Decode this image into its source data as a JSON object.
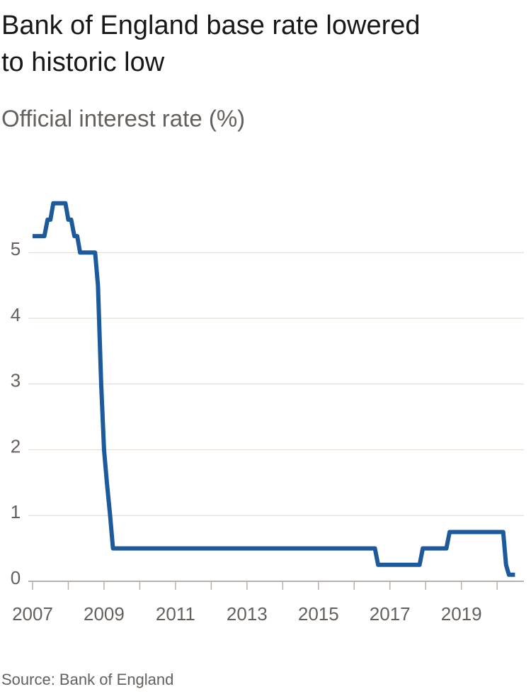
{
  "chart_data": {
    "type": "line",
    "title": [
      "Bank of England base rate lowered",
      "to historic low"
    ],
    "subtitle": "Official interest rate (%)",
    "source": "Source: Bank of England",
    "x": [
      2007.0,
      2007.33,
      2007.42,
      2007.5,
      2007.58,
      2007.92,
      2008.0,
      2008.08,
      2008.17,
      2008.25,
      2008.33,
      2008.75,
      2008.83,
      2008.92,
      2009.0,
      2009.08,
      2009.17,
      2009.25,
      2016.58,
      2016.67,
      2017.83,
      2017.92,
      2018.58,
      2018.67,
      2020.17,
      2020.25,
      2020.33,
      2020.5
    ],
    "series": [
      {
        "name": "Official interest rate",
        "color": "#1d5a9c",
        "values": [
          5.25,
          5.25,
          5.5,
          5.5,
          5.75,
          5.75,
          5.5,
          5.5,
          5.25,
          5.25,
          5.0,
          5.0,
          4.5,
          3.0,
          2.0,
          1.5,
          1.0,
          0.5,
          0.5,
          0.25,
          0.25,
          0.5,
          0.5,
          0.75,
          0.75,
          0.25,
          0.1,
          0.1
        ]
      }
    ],
    "xlim": [
      2007,
      2020.75
    ],
    "xticks": [
      2007,
      2009,
      2011,
      2013,
      2015,
      2017,
      2019
    ],
    "xminorticks": [
      2008,
      2010,
      2012,
      2014,
      2016,
      2018,
      2020
    ],
    "ylim": [
      0,
      6.2
    ],
    "yticks": [
      0,
      1,
      2,
      3,
      4,
      5
    ],
    "grid": true
  }
}
